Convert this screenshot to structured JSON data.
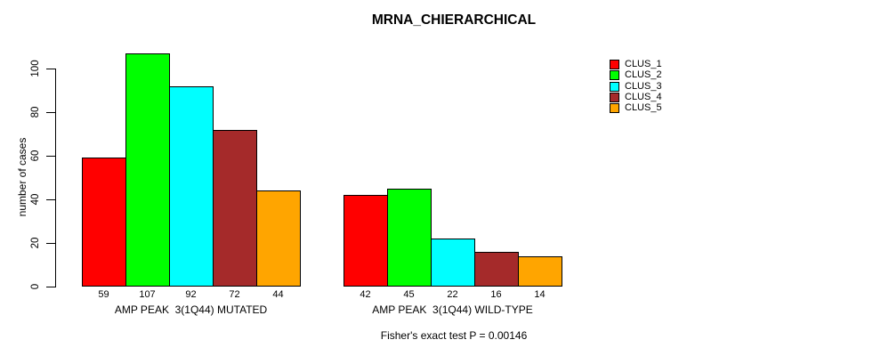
{
  "chart_data": {
    "type": "bar",
    "title": "MRNA_CHIERARCHICAL",
    "ylabel": "number of cases",
    "xlabel": "",
    "ylim": [
      0,
      107
    ],
    "yticks": [
      0,
      20,
      40,
      60,
      80,
      100
    ],
    "grid": false,
    "legend_position": "right",
    "categories": [
      "AMP PEAK  3(1Q44) MUTATED",
      "AMP PEAK  3(1Q44) WILD-TYPE"
    ],
    "groups": [
      {
        "label": "AMP PEAK  3(1Q44) MUTATED",
        "values": [
          59,
          107,
          92,
          72,
          44
        ]
      },
      {
        "label": "AMP PEAK  3(1Q44) WILD-TYPE",
        "values": [
          42,
          45,
          22,
          16,
          14
        ]
      }
    ],
    "series": [
      {
        "name": "CLUS_1",
        "color": "#FF0000"
      },
      {
        "name": "CLUS_2",
        "color": "#00FF00"
      },
      {
        "name": "CLUS_3",
        "color": "#00FFFF"
      },
      {
        "name": "CLUS_4",
        "color": "#A52A2A"
      },
      {
        "name": "CLUS_5",
        "color": "#FFA500"
      }
    ],
    "footnote": "Fisher's exact test P = 0.00146"
  }
}
